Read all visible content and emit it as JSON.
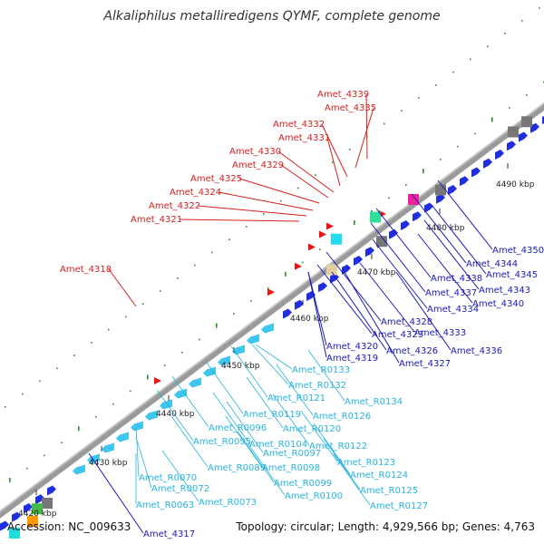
{
  "title": "Alkaliphilus metalliredigens QYMF, complete genome",
  "footer": {
    "accession": "Accession: NC_009633",
    "topology": "Topology: circular; Length: 4,929,566 bp; Genes: 4,763"
  },
  "colors": {
    "backbone": "#8a8a8a",
    "dots": "#2e8b2e",
    "forward_genes": "#1f2fe0",
    "reverse_genes": "#3ec6ee",
    "red_genes": "#ee1111",
    "gray_genes": "#777777",
    "label_red": "#d42020",
    "label_blue": "#1a1ab8",
    "label_cyan": "#27b3e0"
  },
  "scale_labels": [
    "4420 kbp",
    "4430 kbp",
    "4440 kbp",
    "4450 kbp",
    "4460 kbp",
    "4470 kbp",
    "4480 kbp",
    "4490 kbp"
  ],
  "labels_red": [
    "Amet_4339",
    "Amet_4335",
    "Amet_4332",
    "Amet_4331",
    "Amet_4330",
    "Amet_4329",
    "Amet_4325",
    "Amet_4324",
    "Amet_4322",
    "Amet_4321",
    "Amet_4318"
  ],
  "labels_blue": [
    "Amet_4350",
    "Amet_4344",
    "Amet_4345",
    "Amet_4338",
    "Amet_4343",
    "Amet_4337",
    "Amet_4340",
    "Amet_4334",
    "Amet_4328",
    "Amet_4333",
    "Amet_4323",
    "Amet_4336",
    "Amet_4320",
    "Amet_4326",
    "Amet_4319",
    "Amet_4327",
    "Amet_4317"
  ],
  "labels_cyan": [
    "Amet_R0133",
    "Amet_R0132",
    "Amet_R0134",
    "Amet_R0121",
    "Amet_R0126",
    "Amet_R0119",
    "Amet_R0120",
    "Amet_R0096",
    "Amet_R0095",
    "Amet_R0104",
    "Amet_R0122",
    "Amet_R0097",
    "Amet_R0089",
    "Amet_R0098",
    "Amet_R0123",
    "Amet_R0070",
    "Amet_R0124",
    "Amet_R0099",
    "Amet_R0072",
    "Amet_R0125",
    "Amet_R0100",
    "Amet_R0073",
    "Amet_R0063",
    "Amet_R0127"
  ]
}
